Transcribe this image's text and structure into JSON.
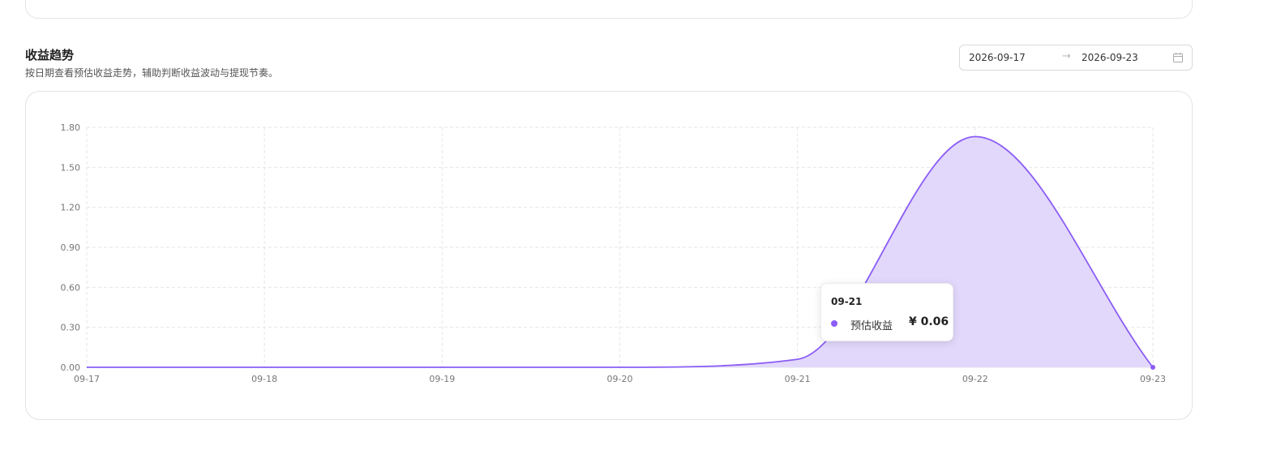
{
  "section": {
    "title": "收益趋势",
    "description": "按日期查看预估收益走势，辅助判断收益波动与提现节奏。"
  },
  "date_range": {
    "start": "2026-09-17",
    "separator": "→",
    "end": "2026-09-23",
    "icon": "calendar-icon"
  },
  "tooltip": {
    "date": "09-21",
    "series_name": "预估收益",
    "value_text": "¥ 0.06"
  },
  "colors": {
    "line": "#8b5cf6",
    "area": "#e0d6fb",
    "grid": "#e6e6ea"
  },
  "chart_data": {
    "type": "area",
    "x": [
      "09-17",
      "09-18",
      "09-19",
      "09-20",
      "09-21",
      "09-22",
      "09-23"
    ],
    "series": [
      {
        "name": "预估收益",
        "values": [
          0,
          0,
          0,
          0,
          0.06,
          1.73,
          0
        ]
      }
    ],
    "yticks": [
      "0.00",
      "0.30",
      "0.60",
      "0.90",
      "1.20",
      "1.50",
      "1.80"
    ],
    "ylim": [
      0,
      1.8
    ],
    "grid": true,
    "smooth": true
  }
}
